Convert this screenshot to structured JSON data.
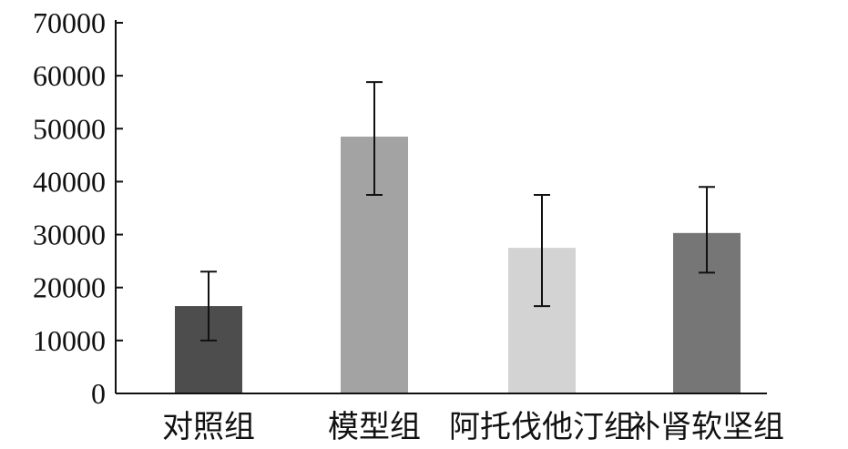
{
  "chart_data": {
    "type": "bar",
    "title": "",
    "xlabel": "",
    "ylabel": "",
    "ylim": [
      0,
      70000
    ],
    "yticks": [
      "0",
      "10000",
      "20000",
      "30000",
      "40000",
      "50000",
      "60000",
      "70000"
    ],
    "categories": [
      "对照组",
      "模型组",
      "阿托伐他汀组",
      "补肾软坚组"
    ],
    "values": [
      16500,
      48500,
      27500,
      30300
    ],
    "error_low": [
      10000,
      37500,
      16500,
      22800
    ],
    "error_high": [
      23000,
      58800,
      37500,
      39000
    ],
    "colors": [
      "#4d4d4d",
      "#a3a3a3",
      "#d3d3d3",
      "#767676"
    ],
    "grid": false,
    "legend": "none"
  }
}
